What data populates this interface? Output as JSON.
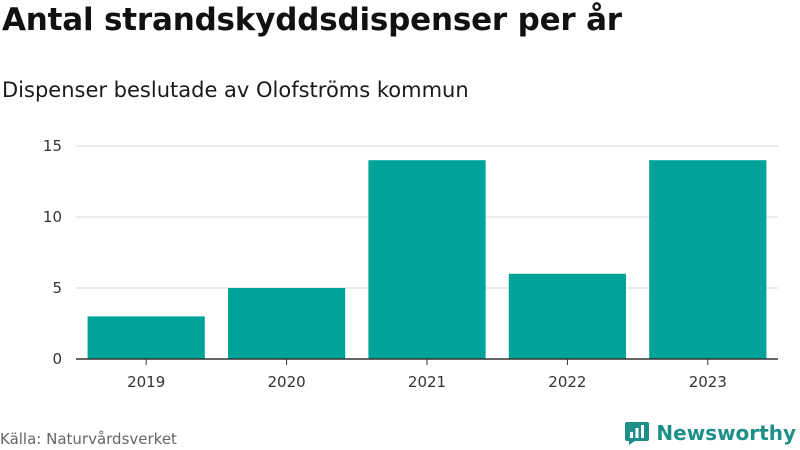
{
  "title": "Antal strandskyddsdispenser per år",
  "subtitle": "Dispenser beslutade av Olofströms kommun",
  "source": "Källa: Naturvårdsverket",
  "brand": {
    "name": "Newsworthy",
    "icon": "newsworthy-logo-icon",
    "color": "#1f8f89"
  },
  "colors": {
    "bar": "#00a39a",
    "grid": "#d9d9d9",
    "axis": "#333333"
  },
  "chart_data": {
    "type": "bar",
    "title": "Antal strandskyddsdispenser per år",
    "subtitle": "Dispenser beslutade av Olofströms kommun",
    "xlabel": "",
    "ylabel": "",
    "categories": [
      "2019",
      "2020",
      "2021",
      "2022",
      "2023"
    ],
    "values": [
      3,
      5,
      14,
      6,
      14
    ],
    "ylim": [
      0,
      15
    ],
    "yticks": [
      0,
      5,
      10,
      15
    ],
    "grid": true,
    "legend": "none"
  }
}
